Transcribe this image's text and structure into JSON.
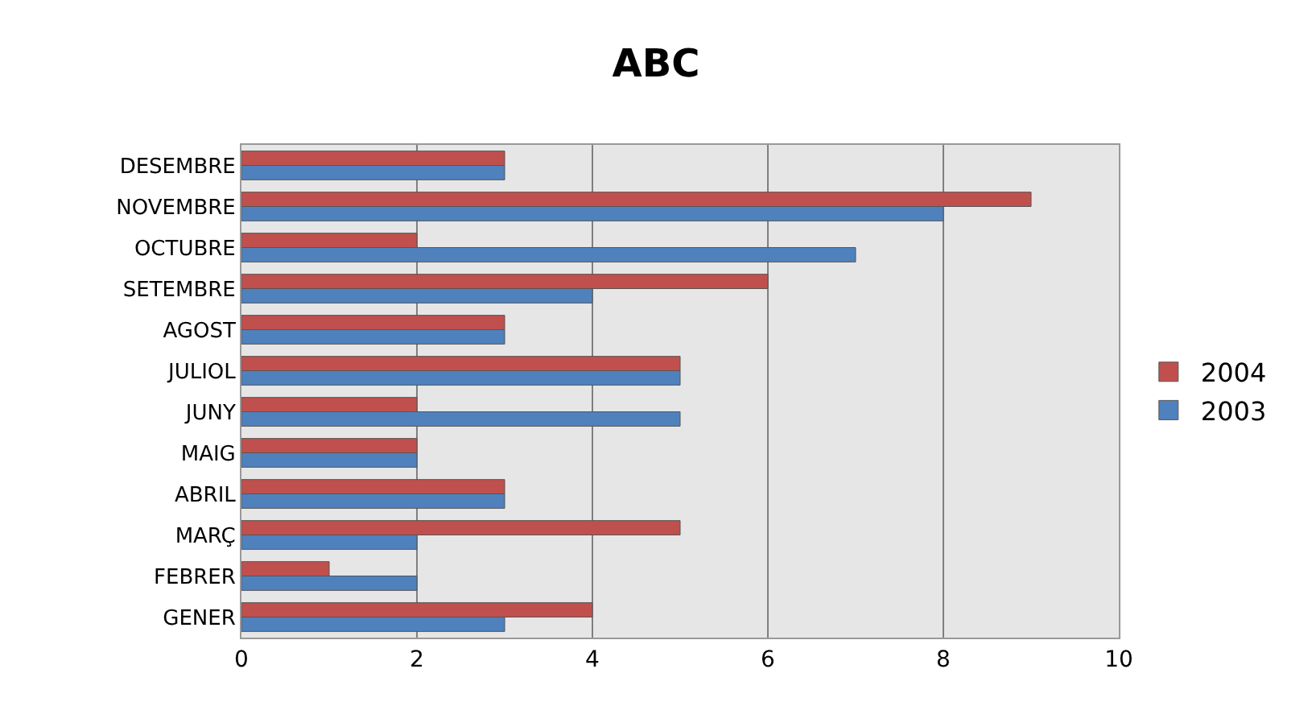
{
  "chart_data": {
    "type": "bar",
    "orientation": "horizontal",
    "title": "ABC",
    "categories": [
      "DESEMBRE",
      "NOVEMBRE",
      "OCTUBRE",
      "SETEMBRE",
      "AGOST",
      "JULIOL",
      "JUNY",
      "MAIG",
      "ABRIL",
      "MARÇ",
      "FEBRER",
      "GENER"
    ],
    "series": [
      {
        "name": "2004",
        "color": "#c0504d",
        "values": [
          3,
          9,
          2,
          6,
          3,
          5,
          2,
          2,
          3,
          5,
          1,
          4
        ]
      },
      {
        "name": "2003",
        "color": "#4f81bd",
        "values": [
          3,
          8,
          7,
          4,
          3,
          5,
          5,
          2,
          3,
          2,
          2,
          3
        ]
      }
    ],
    "xlim": [
      0,
      10
    ],
    "xticks": [
      0,
      2,
      4,
      6,
      8,
      10
    ],
    "grid": "x",
    "legend": "right"
  }
}
